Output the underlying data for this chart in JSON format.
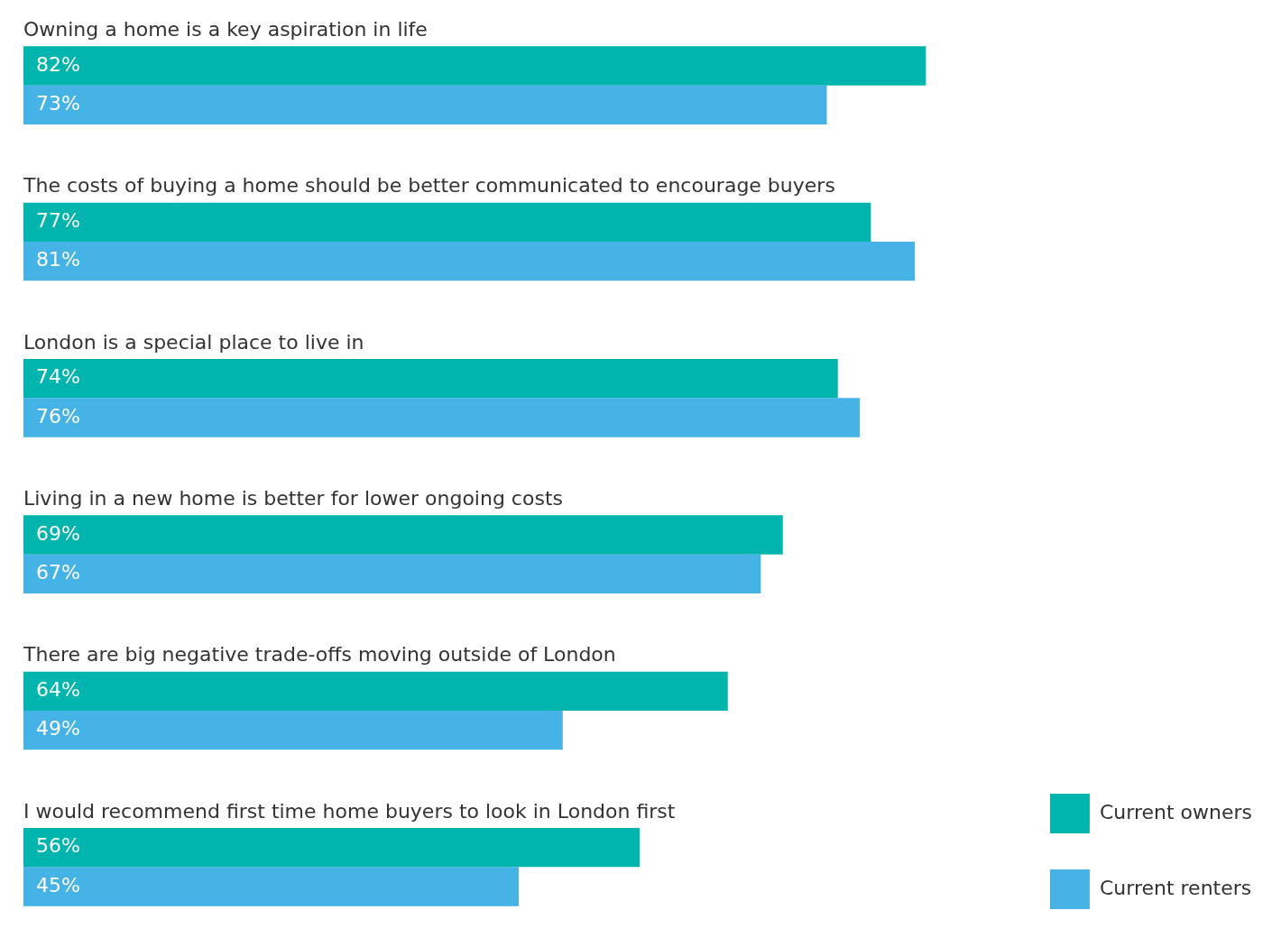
{
  "chart_data": {
    "type": "bar",
    "orientation": "horizontal",
    "categories": [
      "Owning a home is a key aspiration in life",
      "The costs of buying a home should be better communicated to encourage buyers",
      "London is a special place to live in",
      "Living in a new home is better for lower ongoing costs",
      "There are big negative trade-offs moving outside of London",
      "I would recommend first time home buyers to look in London first"
    ],
    "series": [
      {
        "name": "Current owners",
        "color": "#00b5ad",
        "values": [
          82,
          77,
          74,
          69,
          64,
          56
        ],
        "value_labels": [
          "82%",
          "77%",
          "74%",
          "69%",
          "64%",
          "56%"
        ]
      },
      {
        "name": "Current renters",
        "color": "#45b3e6",
        "values": [
          73,
          81,
          76,
          67,
          49,
          45
        ],
        "value_labels": [
          "73%",
          "81%",
          "76%",
          "67%",
          "49%",
          "45%"
        ]
      }
    ],
    "legend": "bottom right",
    "tick_labels": false
  }
}
